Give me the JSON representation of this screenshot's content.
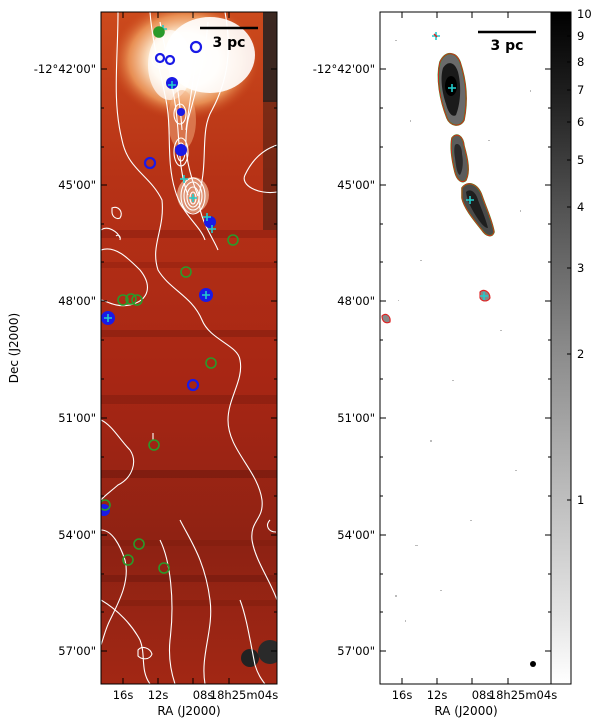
{
  "left_panel": {
    "scale_bar_label": "3 pc",
    "x_axis_label": "RA (J2000)",
    "y_axis_label": "Dec (J2000)",
    "x_ticks": [
      "16s",
      "12s",
      "08s",
      "18h25m04s"
    ],
    "y_ticks": [
      "-12°42'00\"",
      "45'00\"",
      "48'00\"",
      "51'00\"",
      "54'00\"",
      "57'00\""
    ]
  },
  "right_panel": {
    "scale_bar_label": "3 pc",
    "x_axis_label": "RA (J2000)",
    "x_ticks": [
      "16s",
      "12s",
      "08s",
      "18h25m04s"
    ],
    "y_ticks": [
      "-12°42'00\"",
      "45'00\"",
      "48'00\"",
      "51'00\"",
      "54'00\"",
      "57'00\""
    ]
  },
  "colorbar": {
    "ticks": [
      "10",
      "9",
      "8",
      "7",
      "6",
      "5",
      "4",
      "3",
      "2",
      "1"
    ],
    "colormap": "greyscale"
  },
  "colors": {
    "map_base": "#b32a14",
    "map_bright": "#ffffff",
    "contour_white": "#ffffff",
    "marker_blue": "#1a1ae6",
    "marker_cyan": "#22cccc",
    "marker_green": "#2a9a2a",
    "contour_red": "#e02020",
    "contour_green": "#20a020"
  }
}
